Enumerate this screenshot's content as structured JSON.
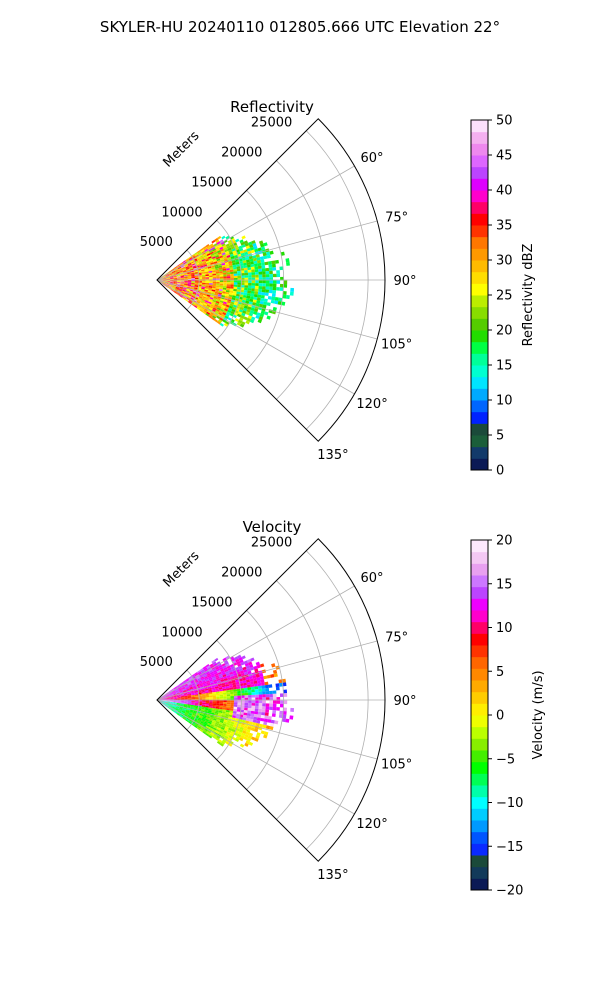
{
  "suptitle": "SKYLER-HU  20240110  012805.666 UTC Elevation 22°",
  "chart_data": [
    {
      "type": "polar-sector",
      "title": "Reflectivity",
      "radial_label": "Meters",
      "radial_ticks": [
        5000,
        10000,
        15000,
        20000,
        25000
      ],
      "radial_tick_labels": [
        "5000",
        "10000",
        "15000",
        "20000",
        "25000"
      ],
      "r_max": 27000,
      "theta_range_deg": [
        45,
        135
      ],
      "theta_ticks": [
        60,
        75,
        90,
        105,
        120,
        135
      ],
      "theta_tick_labels": [
        "60°",
        "75°",
        "90°",
        "105°",
        "120°",
        "135°"
      ],
      "data_extent": {
        "theta_deg": [
          55,
          125
        ],
        "r_max": 15000
      },
      "colorbar": {
        "label": "Reflectivity dBZ",
        "range": [
          0,
          50
        ],
        "ticks": [
          0,
          5,
          10,
          15,
          20,
          25,
          30,
          35,
          40,
          45,
          50
        ],
        "tick_labels": [
          "0",
          "5",
          "10",
          "15",
          "20",
          "25",
          "30",
          "35",
          "40",
          "45",
          "50"
        ],
        "colors": [
          "#0b1a55",
          "#123a6a",
          "#1b5e3a",
          "#1b4a3a",
          "#0022ff",
          "#0066ff",
          "#00aaff",
          "#00e5ff",
          "#00ffd0",
          "#00ff99",
          "#00ff44",
          "#22dd00",
          "#55cc00",
          "#88dd00",
          "#bbee00",
          "#ffff00",
          "#ffdd00",
          "#ffbb00",
          "#ff9900",
          "#ff7700",
          "#ff3300",
          "#ff0000",
          "#ff0066",
          "#ff00cc",
          "#dd00ff",
          "#bb44ff",
          "#dd66ff",
          "#ee88ee",
          "#f4b0f0",
          "#fbe0fb"
        ]
      }
    },
    {
      "type": "polar-sector",
      "title": "Velocity",
      "radial_label": "Meters",
      "radial_ticks": [
        5000,
        10000,
        15000,
        20000,
        25000
      ],
      "radial_tick_labels": [
        "5000",
        "10000",
        "15000",
        "20000",
        "25000"
      ],
      "r_max": 27000,
      "theta_range_deg": [
        45,
        135
      ],
      "theta_ticks": [
        60,
        75,
        90,
        105,
        120,
        135
      ],
      "theta_tick_labels": [
        "60°",
        "75°",
        "90°",
        "105°",
        "120°",
        "135°"
      ],
      "data_extent": {
        "theta_deg": [
          55,
          125
        ],
        "r_max": 15000
      },
      "colorbar": {
        "label": "Velocity (m/s)",
        "range": [
          -20,
          20
        ],
        "ticks": [
          -20,
          -15,
          -10,
          -5,
          0,
          5,
          10,
          15,
          20
        ],
        "tick_labels": [
          "−20",
          "−15",
          "−10",
          "−5",
          "0",
          "5",
          "10",
          "15",
          "20"
        ],
        "colors": [
          "#0b1a55",
          "#123a5a",
          "#1b4a3a",
          "#0a2aff",
          "#0055ff",
          "#0099ff",
          "#00ccff",
          "#00ffff",
          "#00ffaa",
          "#00ff55",
          "#00ff00",
          "#44ee00",
          "#88ee00",
          "#bbff00",
          "#eeff00",
          "#ffee00",
          "#ffcc00",
          "#ffaa00",
          "#ff8800",
          "#ff6600",
          "#ff3300",
          "#ff0000",
          "#ff0066",
          "#ff00cc",
          "#ee00ff",
          "#bb44ff",
          "#cc77ff",
          "#e8a0f0",
          "#f4c8f4",
          "#fde8fd"
        ]
      }
    }
  ]
}
